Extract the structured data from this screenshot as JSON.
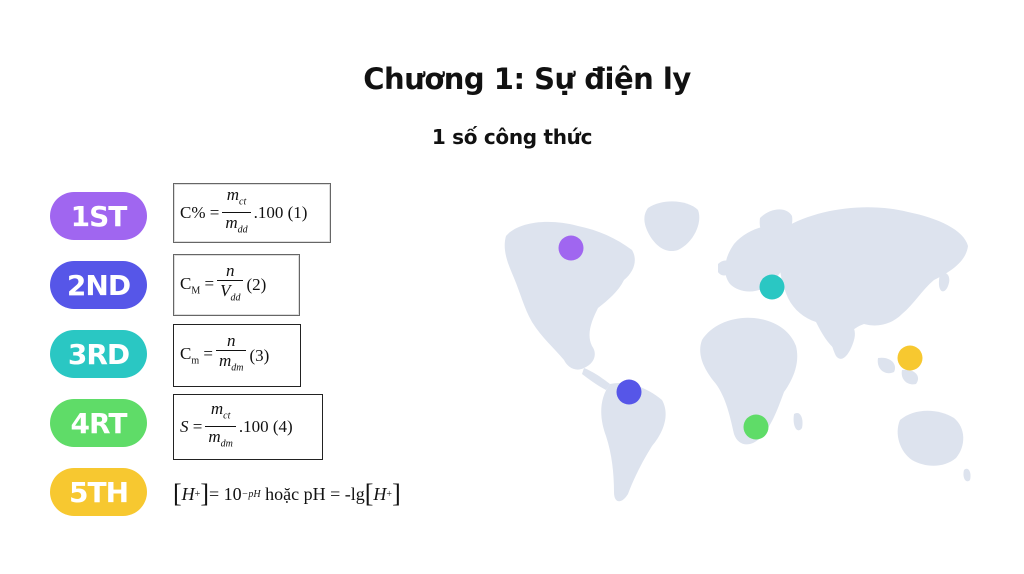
{
  "title": "Chương 1: Sự điện ly",
  "subtitle": "1 số công thức",
  "items": [
    {
      "label": "1ST",
      "color": "#a066f0"
    },
    {
      "label": "2ND",
      "color": "#5656e8"
    },
    {
      "label": "3RD",
      "color": "#2ac7c3"
    },
    {
      "label": "4RT",
      "color": "#5fdc68"
    },
    {
      "label": "5TH",
      "color": "#f7c830"
    }
  ],
  "formulas": {
    "f1": {
      "lhs": "C% =",
      "num": "m",
      "num_sub": "ct",
      "den": "m",
      "den_sub": "dd",
      "rhs": ".100  (1)"
    },
    "f2": {
      "lhs": "C",
      "lhs_sub": "M",
      "eq": " =",
      "num": "n",
      "den": "V",
      "den_sub": "dd",
      "rhs": "(2)"
    },
    "f3": {
      "lhs": "C",
      "lhs_sub": "m",
      "eq": " =",
      "num": "n",
      "den": "m",
      "den_sub": "dm",
      "rhs": "(3)"
    },
    "f4": {
      "lhs": "S",
      "eq": " =",
      "num": "m",
      "num_sub": "ct",
      "den": "m",
      "den_sub": "dm",
      "rhs": ".100 (4)"
    },
    "f5": {
      "h": "H",
      "plus": "+",
      "mid": " = 10",
      "exp": "−pH",
      "text": " hoặc pH = -lg"
    }
  },
  "map": {
    "land_color": "#dde3ee",
    "pins": [
      {
        "name": "north-america-pin",
        "color": "#a066f0"
      },
      {
        "name": "europe-pin",
        "color": "#2ac7c3"
      },
      {
        "name": "asia-pin",
        "color": "#f7c830"
      },
      {
        "name": "south-america-pin",
        "color": "#5656e8"
      },
      {
        "name": "africa-pin",
        "color": "#5fdc68"
      }
    ]
  }
}
